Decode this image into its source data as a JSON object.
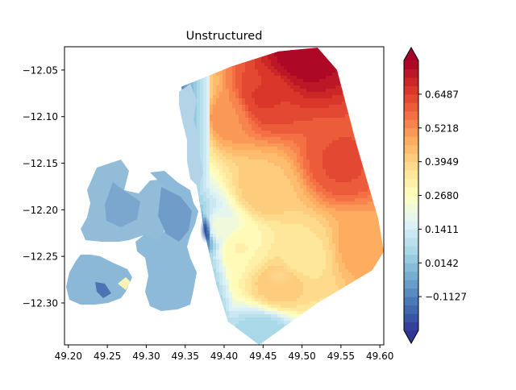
{
  "chart_data": {
    "type": "heatmap",
    "subtype": "tricontourf",
    "title": "Unstructured",
    "xlabel": "",
    "ylabel": "",
    "xlim": [
      49.195,
      49.605
    ],
    "ylim": [
      -12.345,
      -12.025
    ],
    "x_ticks": [
      49.2,
      49.25,
      49.3,
      49.35,
      49.4,
      49.45,
      49.5,
      49.55,
      49.6
    ],
    "x_tick_labels": [
      "49.20",
      "49.25",
      "49.30",
      "49.35",
      "49.40",
      "49.45",
      "49.50",
      "49.55",
      "49.60"
    ],
    "y_ticks": [
      -12.05,
      -12.1,
      -12.15,
      -12.2,
      -12.25,
      -12.3
    ],
    "y_tick_labels": [
      "−12.05",
      "−12.10",
      "−12.15",
      "−12.20",
      "−12.25",
      "−12.30"
    ],
    "colormap": "RdYlBu_r",
    "colorbar": {
      "vmin": -0.2396,
      "vmax": 0.7756,
      "extend": "both",
      "ticks": [
        -0.1127,
        0.0142,
        0.1411,
        0.268,
        0.3949,
        0.5218,
        0.6487
      ],
      "tick_labels": [
        "−0.1127",
        "0.0142",
        "0.1411",
        "0.2680",
        "0.3949",
        "0.5218",
        "0.6487"
      ]
    },
    "field_description_points": [
      {
        "x": 49.5,
        "y": -12.035,
        "v": 0.76
      },
      {
        "x": 49.45,
        "y": -12.08,
        "v": 0.65
      },
      {
        "x": 49.55,
        "y": -12.15,
        "v": 0.62
      },
      {
        "x": 49.4,
        "y": -12.1,
        "v": 0.52
      },
      {
        "x": 49.45,
        "y": -12.18,
        "v": 0.42
      },
      {
        "x": 49.58,
        "y": -12.24,
        "v": 0.48
      },
      {
        "x": 49.5,
        "y": -12.25,
        "v": 0.35
      },
      {
        "x": 49.47,
        "y": -12.28,
        "v": 0.42
      },
      {
        "x": 49.42,
        "y": -12.24,
        "v": 0.3
      },
      {
        "x": 49.39,
        "y": -12.22,
        "v": 0.22
      },
      {
        "x": 49.37,
        "y": -12.225,
        "v": -0.2
      },
      {
        "x": 49.35,
        "y": -12.1,
        "v": 0.05
      },
      {
        "x": 49.3,
        "y": -12.22,
        "v": 0.02
      },
      {
        "x": 49.24,
        "y": -12.22,
        "v": 0.04
      },
      {
        "x": 49.23,
        "y": -12.285,
        "v": 0.02
      },
      {
        "x": 49.26,
        "y": -12.29,
        "v": 0.3
      },
      {
        "x": 49.45,
        "y": -12.335,
        "v": 0.05
      }
    ]
  }
}
